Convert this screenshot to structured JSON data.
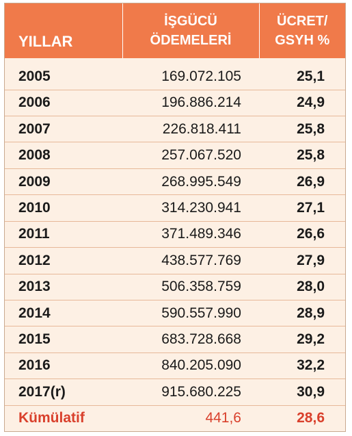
{
  "header": {
    "years": "YILLAR",
    "payments_line1": "İŞGÜCÜ",
    "payments_line2": "ÖDEMELERİ",
    "ratio_line1": "ÜCRET/",
    "ratio_line2": "GSYH %"
  },
  "rows": [
    {
      "year": "2005",
      "payment": "169.072.105",
      "ratio": "25,1"
    },
    {
      "year": "2006",
      "payment": "196.886.214",
      "ratio": "24,9"
    },
    {
      "year": "2007",
      "payment": "226.818.411",
      "ratio": "25,8"
    },
    {
      "year": "2008",
      "payment": "257.067.520",
      "ratio": "25,8"
    },
    {
      "year": "2009",
      "payment": "268.995.549",
      "ratio": "26,9"
    },
    {
      "year": "2010",
      "payment": "314.230.941",
      "ratio": "27,1"
    },
    {
      "year": "2011",
      "payment": "371.489.346",
      "ratio": "26,6"
    },
    {
      "year": "2012",
      "payment": "438.577.769",
      "ratio": "27,9"
    },
    {
      "year": "2013",
      "payment": "506.358.759",
      "ratio": "28,0"
    },
    {
      "year": "2014",
      "payment": "590.557.990",
      "ratio": "28,9"
    },
    {
      "year": "2015",
      "payment": "683.728.668",
      "ratio": "29,2"
    },
    {
      "year": "2016",
      "payment": "840.205.090",
      "ratio": "32,2"
    },
    {
      "year": "2017(r)",
      "payment": "915.680.225",
      "ratio": "30,9"
    }
  ],
  "cumulative": {
    "label": "Kümülatif",
    "payment": "441,6",
    "ratio": "28,6"
  },
  "colors": {
    "header_bg": "#f07a4a",
    "row_bg": "#fdf0e4",
    "accent_text": "#d9402c"
  }
}
